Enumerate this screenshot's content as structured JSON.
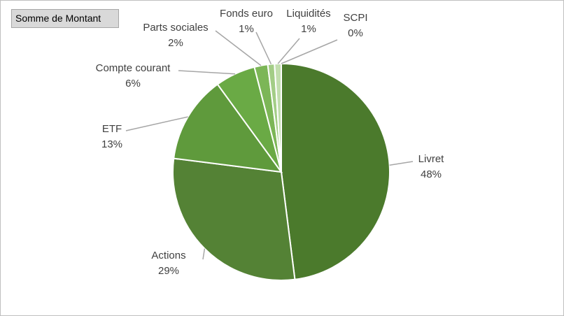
{
  "chart_data": {
    "type": "pie",
    "field_button": "Somme de Montant",
    "categories": [
      "Livret",
      "Actions",
      "ETF",
      "Compte courant",
      "Parts sociales",
      "Fonds euro",
      "Liquidités",
      "SCPI"
    ],
    "values": [
      48,
      29,
      13,
      6,
      2,
      1,
      1,
      0
    ],
    "value_labels": [
      "48%",
      "29%",
      "13%",
      "6%",
      "2%",
      "1%",
      "1%",
      "0%"
    ],
    "colors": [
      "#4b7a2c",
      "#548235",
      "#5f9a3c",
      "#6aaa45",
      "#7cb657",
      "#a3cd86",
      "#c2deae",
      "#dcedd0"
    ]
  }
}
